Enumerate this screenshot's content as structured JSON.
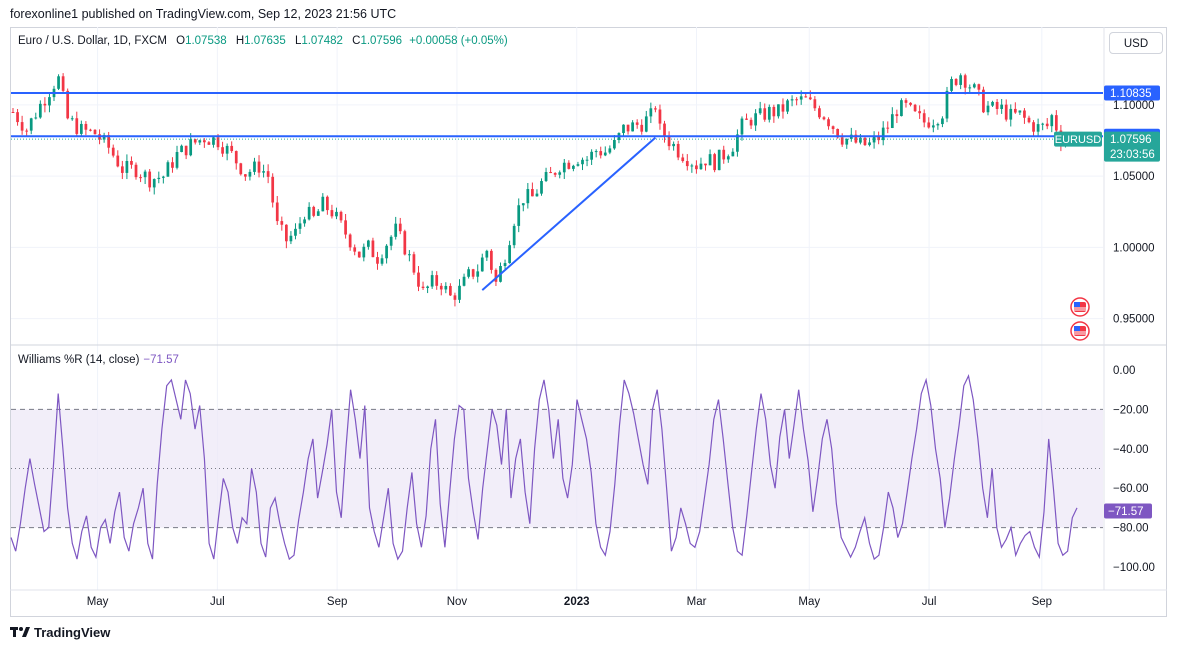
{
  "header": {
    "publisher_line": "forexonline1 published on TradingView.com, Sep 12, 2023 21:56 UTC"
  },
  "legend": {
    "symbol": "Euro / U.S. Dollar, 1D, FXCM",
    "o_label": "O",
    "o_value": "1.07538",
    "h_label": "H",
    "h_value": "1.07635",
    "l_label": "L",
    "l_value": "1.07482",
    "c_label": "C",
    "c_value": "1.07596",
    "change": "+0.00058 (+0.05%)"
  },
  "currency_button": "USD",
  "indicator": {
    "label": "Williams %R (14, close)",
    "value": "−71.57"
  },
  "footer": {
    "brand": "TradingView"
  },
  "colors": {
    "up": "#089981",
    "down": "#f23645",
    "hline": "#2962ff",
    "trend": "#2962ff",
    "wr_line": "#7e57c2",
    "wr_band": "#ede7f6",
    "grid": "#f0f3fa",
    "badge_blue": "#2962ff",
    "badge_teal": "#26a69a"
  },
  "chart_data": [
    {
      "type": "candlestick",
      "symbol": "EURUSD",
      "ylim": [
        0.935,
        1.135
      ],
      "price_ticks": [
        "0.95000",
        "1.00000",
        "1.05000",
        "1.10000"
      ],
      "x_tick_labels": [
        "May",
        "Jul",
        "Sep",
        "Nov",
        "2023",
        "Mar",
        "May",
        "Jul",
        "Sep"
      ],
      "close_path": [
        [
          0,
          1.095
        ],
        [
          3,
          1.083
        ],
        [
          6,
          1.1
        ],
        [
          9,
          1.115
        ],
        [
          10,
          1.118
        ],
        [
          12,
          1.09
        ],
        [
          15,
          1.082
        ],
        [
          18,
          1.08
        ],
        [
          21,
          1.07
        ],
        [
          24,
          1.055
        ],
        [
          27,
          1.055
        ],
        [
          30,
          1.048
        ],
        [
          33,
          1.05
        ],
        [
          36,
          1.065
        ],
        [
          39,
          1.072
        ],
        [
          42,
          1.077
        ],
        [
          45,
          1.075
        ],
        [
          48,
          1.065
        ],
        [
          51,
          1.052
        ],
        [
          54,
          1.057
        ],
        [
          56,
          1.05
        ],
        [
          58,
          1.015
        ],
        [
          60,
          1.005
        ],
        [
          62,
          1.01
        ],
        [
          64,
          1.025
        ],
        [
          66,
          1.02
        ],
        [
          68,
          1.03
        ],
        [
          70,
          1.025
        ],
        [
          72,
          1.015
        ],
        [
          74,
          1.005
        ],
        [
          76,
          0.995
        ],
        [
          78,
          1.0
        ],
        [
          80,
          0.993
        ],
        [
          82,
          1.003
        ],
        [
          84,
          1.012
        ],
        [
          86,
          1.0
        ],
        [
          88,
          0.985
        ],
        [
          90,
          0.968
        ],
        [
          92,
          0.975
        ],
        [
          94,
          0.975
        ],
        [
          96,
          0.965
        ],
        [
          98,
          0.97
        ],
        [
          100,
          0.98
        ],
        [
          102,
          0.985
        ],
        [
          104,
          0.998
        ],
        [
          106,
          0.975
        ],
        [
          108,
          0.995
        ],
        [
          110,
          1.02
        ],
        [
          112,
          1.035
        ],
        [
          114,
          1.035
        ],
        [
          116,
          1.045
        ],
        [
          118,
          1.05
        ],
        [
          120,
          1.058
        ],
        [
          122,
          1.06
        ],
        [
          124,
          1.063
        ],
        [
          126,
          1.062
        ],
        [
          128,
          1.068
        ],
        [
          130,
          1.067
        ],
        [
          132,
          1.072
        ],
        [
          134,
          1.083
        ],
        [
          136,
          1.085
        ],
        [
          138,
          1.087
        ],
        [
          140,
          1.092
        ],
        [
          141,
          1.1
        ],
        [
          142,
          1.082
        ],
        [
          144,
          1.075
        ],
        [
          146,
          1.068
        ],
        [
          148,
          1.063
        ],
        [
          150,
          1.058
        ],
        [
          152,
          1.062
        ],
        [
          154,
          1.06
        ],
        [
          156,
          1.065
        ],
        [
          158,
          1.072
        ],
        [
          160,
          1.085
        ],
        [
          162,
          1.09
        ],
        [
          164,
          1.092
        ],
        [
          166,
          1.095
        ],
        [
          168,
          1.095
        ],
        [
          170,
          1.1
        ],
        [
          172,
          1.103
        ],
        [
          174,
          1.103
        ],
        [
          176,
          1.098
        ],
        [
          178,
          1.093
        ],
        [
          180,
          1.085
        ],
        [
          182,
          1.077
        ],
        [
          184,
          1.075
        ],
        [
          186,
          1.072
        ],
        [
          188,
          1.072
        ],
        [
          190,
          1.077
        ],
        [
          192,
          1.085
        ],
        [
          194,
          1.097
        ],
        [
          196,
          1.098
        ],
        [
          198,
          1.092
        ],
        [
          200,
          1.088
        ],
        [
          202,
          1.09
        ],
        [
          204,
          1.095
        ],
        [
          206,
          1.115
        ],
        [
          208,
          1.122
        ],
        [
          209,
          1.118
        ],
        [
          211,
          1.11
        ],
        [
          213,
          1.1
        ],
        [
          215,
          1.097
        ],
        [
          217,
          1.097
        ],
        [
          219,
          1.092
        ],
        [
          221,
          1.093
        ],
        [
          223,
          1.087
        ],
        [
          225,
          1.084
        ],
        [
          227,
          1.085
        ],
        [
          228,
          1.092
        ],
        [
          230,
          1.077
        ],
        [
          232,
          1.076
        ]
      ],
      "horizontal_levels": [
        {
          "label": "1.10835",
          "value": 1.10835
        },
        {
          "label": "1.07794",
          "value": 1.07794
        }
      ],
      "current_price": {
        "symbol": "EURUSD",
        "value": 1.07596,
        "label": "1.07596",
        "countdown": "23:03:56"
      },
      "trendline": {
        "from": [
          103,
          0.97
        ],
        "to": [
          141,
          1.077
        ]
      }
    },
    {
      "type": "line",
      "name": "Williams %R (14, close)",
      "ylim": [
        -100,
        0
      ],
      "ticks": [
        "0.00",
        "−20.00",
        "−40.00",
        "−60.00",
        "−80.00",
        "−100.00"
      ],
      "band": [
        -80,
        -20
      ],
      "current": {
        "value": -71.57,
        "label": "−71.57"
      },
      "values": [
        -85,
        -92,
        -78,
        -60,
        -45,
        -58,
        -70,
        -82,
        -80,
        -48,
        -12,
        -40,
        -70,
        -88,
        -96,
        -82,
        -74,
        -90,
        -95,
        -80,
        -76,
        -88,
        -72,
        -62,
        -85,
        -92,
        -78,
        -70,
        -60,
        -88,
        -96,
        -58,
        -30,
        -8,
        -5,
        -15,
        -25,
        -5,
        -12,
        -30,
        -18,
        -45,
        -88,
        -96,
        -75,
        -55,
        -62,
        -80,
        -88,
        -75,
        -78,
        -50,
        -62,
        -88,
        -95,
        -70,
        -65,
        -78,
        -88,
        -96,
        -94,
        -76,
        -62,
        -45,
        -35,
        -65,
        -52,
        -38,
        -20,
        -62,
        -75,
        -40,
        -10,
        -25,
        -45,
        -18,
        -70,
        -82,
        -90,
        -75,
        -60,
        -88,
        -96,
        -92,
        -70,
        -52,
        -78,
        -90,
        -74,
        -40,
        -25,
        -68,
        -90,
        -62,
        -35,
        -18,
        -20,
        -55,
        -72,
        -86,
        -60,
        -40,
        -20,
        -28,
        -48,
        -20,
        -65,
        -45,
        -35,
        -62,
        -78,
        -40,
        -15,
        -5,
        -20,
        -45,
        -25,
        -55,
        -65,
        -48,
        -15,
        -25,
        -35,
        -52,
        -78,
        -90,
        -94,
        -82,
        -58,
        -28,
        -5,
        -12,
        -22,
        -35,
        -48,
        -58,
        -20,
        -10,
        -30,
        -60,
        -92,
        -85,
        -70,
        -78,
        -88,
        -90,
        -82,
        -65,
        -48,
        -25,
        -15,
        -35,
        -58,
        -80,
        -92,
        -94,
        -74,
        -52,
        -30,
        -12,
        -25,
        -48,
        -60,
        -34,
        -20,
        -45,
        -28,
        -10,
        -30,
        -46,
        -72,
        -55,
        -35,
        -25,
        -40,
        -68,
        -85,
        -90,
        -95,
        -90,
        -82,
        -75,
        -88,
        -96,
        -94,
        -80,
        -62,
        -70,
        -85,
        -78,
        -62,
        -45,
        -30,
        -12,
        -5,
        -18,
        -40,
        -55,
        -80,
        -65,
        -45,
        -28,
        -8,
        -3,
        -15,
        -35,
        -60,
        -75,
        -50,
        -80,
        -90,
        -86,
        -80,
        -94,
        -88,
        -84,
        -82,
        -90,
        -95,
        -72,
        -35,
        -60,
        -88,
        -94,
        -92,
        -75,
        -70
      ]
    }
  ]
}
